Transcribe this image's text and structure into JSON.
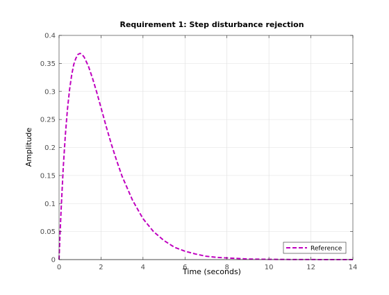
{
  "chart_data": {
    "type": "line",
    "title": "Requirement 1: Step disturbance rejection",
    "xlabel": "Time (seconds)",
    "ylabel": "Amplitude",
    "xlim": [
      0,
      14
    ],
    "ylim": [
      0,
      0.4
    ],
    "xticks": [
      "0",
      "2",
      "4",
      "6",
      "8",
      "10",
      "12",
      "14"
    ],
    "yticks": [
      "0",
      "0.05",
      "0.1",
      "0.15",
      "0.2",
      "0.25",
      "0.3",
      "0.35",
      "0.4"
    ],
    "grid": true,
    "legend_position": "bottom-right",
    "series": [
      {
        "name": "Reference",
        "color": "#bf00bf",
        "style": "dashed",
        "x": [
          0,
          0.05,
          0.1,
          0.2,
          0.3,
          0.4,
          0.5,
          0.6,
          0.7,
          0.8,
          0.9,
          1.0,
          1.1,
          1.2,
          1.4,
          1.6,
          1.8,
          2.0,
          2.25,
          2.5,
          2.75,
          3.0,
          3.5,
          4.0,
          4.5,
          5.0,
          5.5,
          6.0,
          6.5,
          7.0,
          7.5,
          8.0,
          9.0,
          10.0,
          11.0,
          12.0,
          13.0,
          14.0
        ],
        "y": [
          0,
          0.048,
          0.09,
          0.164,
          0.222,
          0.268,
          0.303,
          0.329,
          0.348,
          0.359,
          0.366,
          0.368,
          0.366,
          0.361,
          0.345,
          0.323,
          0.298,
          0.271,
          0.237,
          0.205,
          0.176,
          0.149,
          0.106,
          0.073,
          0.05,
          0.034,
          0.022,
          0.015,
          0.01,
          0.006,
          0.004,
          0.003,
          0.001,
          0.0005,
          0.0002,
          0.0001,
          3e-05,
          1e-05
        ]
      }
    ]
  }
}
